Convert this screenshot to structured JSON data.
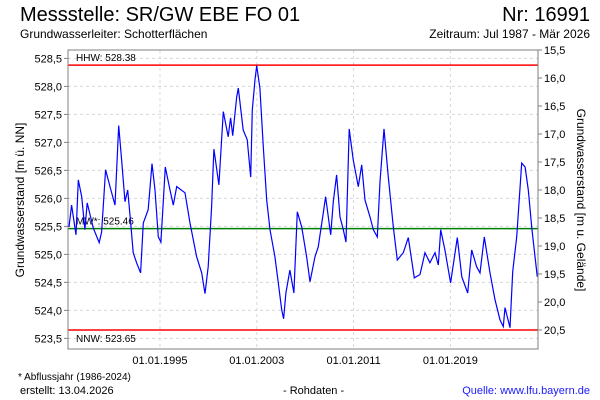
{
  "header": {
    "title": "Messstelle: SR/GW EBE FO 01",
    "number": "Nr: 16991",
    "aquifer_label": "Grundwasserleiter:   Schotterflächen",
    "period": "Zeitraum: Jul 1987 - Mär 2026"
  },
  "footer": {
    "footnote": "* Abflussjahr (1986-2024)",
    "created": "erstellt:  13.04.2026",
    "data_type": "- Rohdaten -",
    "source": "Quelle: www.lfu.bayern.de"
  },
  "colors": {
    "series": "#0000ff",
    "extreme": "#ff0000",
    "mean": "#008000",
    "grid": "#d8d8d8",
    "source_link": "#1a1aff"
  },
  "chart_data": {
    "type": "line",
    "title": "Messstelle: SR/GW EBE FO 01",
    "ylabel": "Grundwasserstand [m ü. NN]",
    "y2label": "Grundwasserstand [m u. Gelände]",
    "xlim": [
      1987.4,
      2026.24
    ],
    "ylim": [
      523.31,
      528.65
    ],
    "terrain_level": 544.15,
    "grid": true,
    "x_ticks": [
      {
        "value": 1995.0,
        "label": "01.01.1995"
      },
      {
        "value": 2003.0,
        "label": "01.01.2003"
      },
      {
        "value": 2011.0,
        "label": "01.01.2011"
      },
      {
        "value": 2019.0,
        "label": "01.01.2019"
      }
    ],
    "y_ticks": [
      {
        "value": 523.5,
        "label": "523,5"
      },
      {
        "value": 524.0,
        "label": "524,0"
      },
      {
        "value": 524.5,
        "label": "524,5"
      },
      {
        "value": 525.0,
        "label": "525,0"
      },
      {
        "value": 525.5,
        "label": "525,5"
      },
      {
        "value": 526.0,
        "label": "526,0"
      },
      {
        "value": 526.5,
        "label": "526,5"
      },
      {
        "value": 527.0,
        "label": "527,0"
      },
      {
        "value": 527.5,
        "label": "527,5"
      },
      {
        "value": 528.0,
        "label": "528,0"
      },
      {
        "value": 528.5,
        "label": "528,5"
      }
    ],
    "y2_ticks": [
      {
        "value": 15.5,
        "label": "15,5"
      },
      {
        "value": 16.0,
        "label": "16,0"
      },
      {
        "value": 16.5,
        "label": "16,5"
      },
      {
        "value": 17.0,
        "label": "17,0"
      },
      {
        "value": 17.5,
        "label": "17,5"
      },
      {
        "value": 18.0,
        "label": "18,0"
      },
      {
        "value": 18.5,
        "label": "18,5"
      },
      {
        "value": 19.0,
        "label": "19,0"
      },
      {
        "value": 19.5,
        "label": "19,5"
      },
      {
        "value": 20.0,
        "label": "20,0"
      },
      {
        "value": 20.5,
        "label": "20,5"
      }
    ],
    "reference_lines": [
      {
        "name": "HHW",
        "value": 528.38,
        "label": "HHW: 528.38",
        "color": "#ff0000"
      },
      {
        "name": "MW",
        "value": 525.46,
        "label": "MW*: 525.46",
        "color": "#008000"
      },
      {
        "name": "NNW",
        "value": 523.65,
        "label": "NNW: 523.65",
        "color": "#ff0000"
      }
    ],
    "series": [
      {
        "name": "Grundwasserstand",
        "x": [
          1987.48,
          1987.7,
          1988.06,
          1988.25,
          1988.53,
          1988.8,
          1988.99,
          1989.49,
          1989.98,
          1990.18,
          1990.51,
          1990.87,
          1991.28,
          1991.59,
          1991.83,
          1992.11,
          1992.33,
          1992.58,
          1992.79,
          1993.07,
          1993.4,
          1993.62,
          1994.03,
          1994.34,
          1994.59,
          1994.86,
          1995.08,
          1995.44,
          1995.83,
          1996.1,
          1996.38,
          1997.07,
          1997.48,
          1998.03,
          1998.45,
          1998.72,
          1998.99,
          1999.27,
          1999.46,
          1999.87,
          2000.23,
          2000.64,
          2000.84,
          2001.01,
          2001.34,
          2001.47,
          2001.88,
          2002.21,
          2002.5,
          2002.63,
          2002.85,
          2002.99,
          2003.26,
          2003.54,
          2003.82,
          2004.09,
          2004.5,
          2004.78,
          2005.06,
          2005.22,
          2005.41,
          2005.74,
          2006.07,
          2006.35,
          2006.71,
          2007.12,
          2007.4,
          2007.81,
          2008.08,
          2008.5,
          2008.69,
          2009.11,
          2009.32,
          2009.6,
          2009.88,
          2010.15,
          2010.37,
          2010.64,
          2010.97,
          2011.39,
          2011.67,
          2011.94,
          2012.36,
          2012.63,
          2012.96,
          2013.18,
          2013.51,
          2013.87,
          2014.28,
          2014.61,
          2015.11,
          2015.52,
          2016.02,
          2016.49,
          2016.9,
          2017.31,
          2017.73,
          2018.0,
          2018.2,
          2018.55,
          2019.02,
          2019.57,
          2019.94,
          2020.43,
          2020.76,
          2021.17,
          2021.45,
          2021.8,
          2022.27,
          2022.69,
          2023.1,
          2023.37,
          2023.51,
          2023.93,
          2024.15,
          2024.48,
          2024.89,
          2025.17,
          2025.44,
          2025.72,
          2025.99,
          2026.18
        ],
        "y": [
          525.49,
          525.88,
          525.35,
          526.33,
          526.03,
          525.44,
          525.92,
          525.47,
          525.21,
          525.4,
          526.51,
          526.21,
          525.88,
          527.3,
          526.69,
          525.94,
          526.15,
          525.56,
          525.03,
          524.85,
          524.67,
          525.56,
          525.8,
          526.62,
          526.15,
          525.31,
          525.22,
          526.56,
          526.15,
          525.88,
          526.21,
          526.1,
          525.56,
          524.96,
          524.67,
          524.3,
          524.78,
          525.85,
          526.88,
          526.24,
          527.55,
          527.1,
          527.44,
          527.12,
          527.81,
          527.97,
          527.22,
          527.05,
          526.38,
          527.58,
          528.12,
          528.37,
          527.97,
          526.92,
          525.97,
          525.44,
          524.96,
          524.49,
          524.01,
          523.85,
          524.31,
          524.72,
          524.31,
          525.76,
          525.49,
          524.96,
          524.51,
          524.96,
          525.13,
          525.74,
          526.03,
          525.35,
          525.94,
          526.42,
          525.67,
          525.44,
          525.22,
          527.24,
          526.69,
          526.21,
          526.6,
          525.97,
          525.67,
          525.44,
          525.31,
          526.3,
          527.24,
          526.38,
          525.49,
          524.9,
          525.03,
          525.3,
          524.58,
          524.64,
          525.03,
          524.85,
          525.03,
          524.81,
          525.44,
          525.08,
          524.49,
          525.3,
          524.6,
          524.31,
          525.08,
          524.78,
          524.67,
          525.31,
          524.67,
          524.19,
          523.83,
          523.71,
          524.05,
          523.69,
          524.69,
          525.31,
          526.63,
          526.56,
          526.15,
          525.49,
          524.96,
          524.6
        ]
      }
    ]
  }
}
